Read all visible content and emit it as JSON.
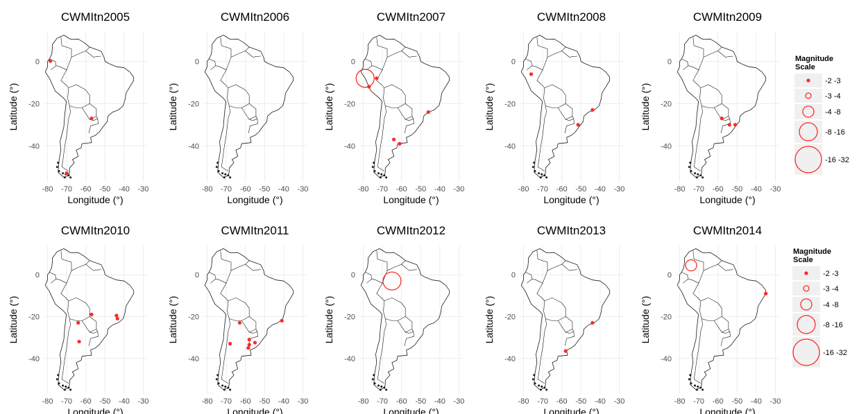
{
  "figure": {
    "xlabel": "Longitude (°)",
    "ylabel": "Latitude (°)",
    "x_ticks": [
      -80,
      -70,
      -60,
      -50,
      -40,
      -30
    ],
    "y_ticks": [
      0,
      -20,
      -40
    ],
    "xlim": [
      -82,
      -28
    ],
    "ylim": [
      -57,
      14
    ],
    "colors": {
      "marker": "#ff2a2a",
      "coast": "#1a1a1a",
      "grid": "#ececec",
      "legend_bg": "#f0f0f0",
      "tick_text": "#4d4d4d",
      "axis_text": "#000000"
    }
  },
  "legend": {
    "title_line1": "Magnitude",
    "title_line2": "Scale",
    "entries": [
      {
        "label": "-2 -3",
        "r": 2
      },
      {
        "label": "-3 -4",
        "r": 4
      },
      {
        "label": "-4 -8",
        "r": 8
      },
      {
        "label": "-8 -16",
        "r": 13
      },
      {
        "label": "-16 -32",
        "r": 19
      }
    ]
  },
  "chart_data": [
    {
      "type": "scatter",
      "title": "CWMItn2005",
      "points": [
        {
          "lon": -78.5,
          "lat": 0.2,
          "r": 2
        },
        {
          "lon": -57,
          "lat": -27,
          "r": 2
        },
        {
          "lon": -70,
          "lat": -53,
          "r": 2
        }
      ]
    },
    {
      "type": "scatter",
      "title": "CWMItn2006",
      "points": []
    },
    {
      "type": "scatter",
      "title": "CWMItn2007",
      "points": [
        {
          "lon": -79,
          "lat": -8,
          "r": 13
        },
        {
          "lon": -73,
          "lat": -8,
          "r": 2
        },
        {
          "lon": -77,
          "lat": -12,
          "r": 2
        },
        {
          "lon": -46,
          "lat": -24,
          "r": 2
        },
        {
          "lon": -64,
          "lat": -37,
          "r": 2
        },
        {
          "lon": -61,
          "lat": -39,
          "r": 2
        }
      ]
    },
    {
      "type": "scatter",
      "title": "CWMItn2008",
      "points": [
        {
          "lon": -76,
          "lat": -6,
          "r": 2
        },
        {
          "lon": -44,
          "lat": -23,
          "r": 2
        },
        {
          "lon": -51.5,
          "lat": -30,
          "r": 2
        }
      ]
    },
    {
      "type": "scatter",
      "title": "CWMItn2009",
      "points": [
        {
          "lon": -58,
          "lat": -27,
          "r": 2
        },
        {
          "lon": -54,
          "lat": -30,
          "r": 2
        },
        {
          "lon": -51,
          "lat": -30,
          "r": 2
        }
      ]
    },
    {
      "type": "scatter",
      "title": "CWMItn2010",
      "points": [
        {
          "lon": -57,
          "lat": -19,
          "r": 2
        },
        {
          "lon": -64,
          "lat": -23,
          "r": 2
        },
        {
          "lon": -44,
          "lat": -19.5,
          "r": 2
        },
        {
          "lon": -43.5,
          "lat": -21,
          "r": 2
        },
        {
          "lon": -63.5,
          "lat": -32,
          "r": 2
        }
      ]
    },
    {
      "type": "scatter",
      "title": "CWMItn2011",
      "points": [
        {
          "lon": -63,
          "lat": -23,
          "r": 2
        },
        {
          "lon": -41,
          "lat": -22,
          "r": 2
        },
        {
          "lon": -58,
          "lat": -31,
          "r": 2
        },
        {
          "lon": -55,
          "lat": -32.5,
          "r": 2
        },
        {
          "lon": -68,
          "lat": -33,
          "r": 2
        },
        {
          "lon": -58,
          "lat": -33.5,
          "r": 2
        },
        {
          "lon": -58.5,
          "lat": -35,
          "r": 2
        }
      ]
    },
    {
      "type": "scatter",
      "title": "CWMItn2012",
      "points": [
        {
          "lon": -65,
          "lat": -3,
          "r": 13
        }
      ]
    },
    {
      "type": "scatter",
      "title": "CWMItn2013",
      "points": [
        {
          "lon": -44,
          "lat": -23,
          "r": 2
        },
        {
          "lon": -58,
          "lat": -36.5,
          "r": 2
        }
      ]
    },
    {
      "type": "scatter",
      "title": "CWMItn2014",
      "points": [
        {
          "lon": -74,
          "lat": 4.5,
          "r": 8
        },
        {
          "lon": -35,
          "lat": -9,
          "r": 2
        }
      ]
    }
  ]
}
